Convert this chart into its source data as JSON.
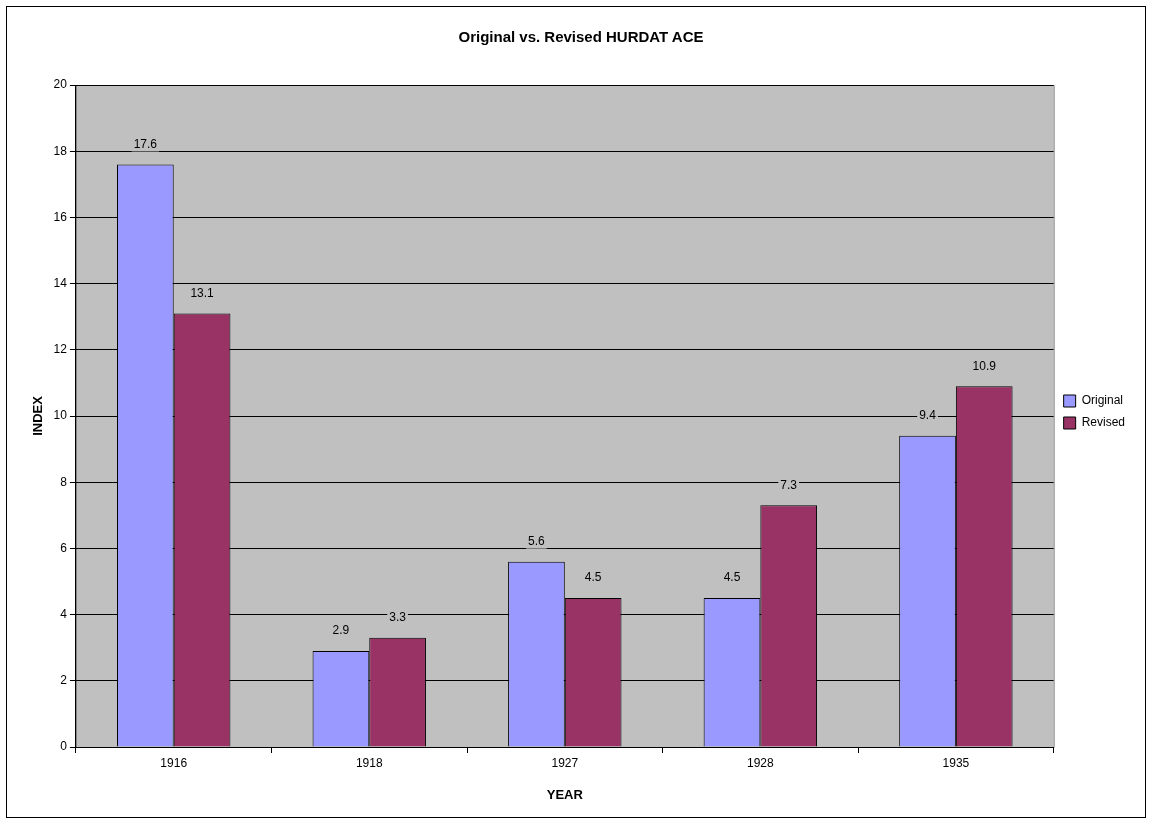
{
  "chart_data": {
    "type": "bar",
    "title": "Original vs. Revised HURDAT ACE",
    "xlabel": "YEAR",
    "ylabel": "INDEX",
    "categories": [
      "1916",
      "1918",
      "1927",
      "1928",
      "1935"
    ],
    "series": [
      {
        "name": "Original",
        "color": "#9999ff",
        "values": [
          17.6,
          2.9,
          5.6,
          4.5,
          9.4
        ]
      },
      {
        "name": "Revised",
        "color": "#993366",
        "values": [
          13.1,
          3.3,
          4.5,
          7.3,
          10.9
        ]
      }
    ],
    "ylim": [
      0,
      20
    ],
    "yticks": [
      0,
      2,
      4,
      6,
      8,
      10,
      12,
      14,
      16,
      18,
      20
    ],
    "grid": "y",
    "legend": "right",
    "data_labels": true
  }
}
